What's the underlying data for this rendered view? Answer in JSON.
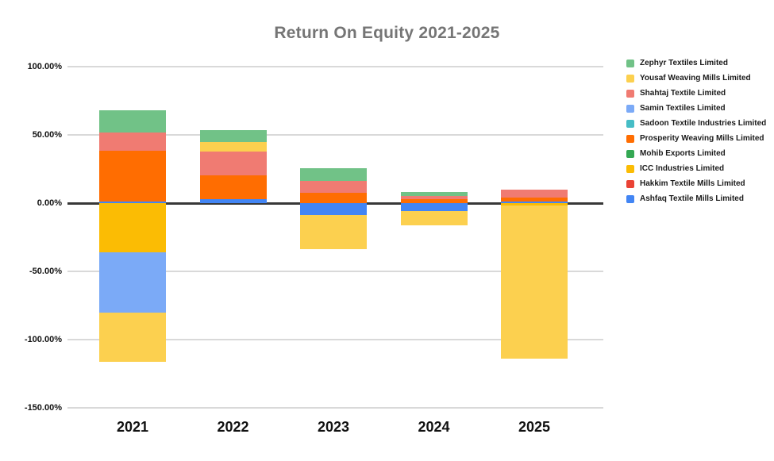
{
  "chart": {
    "title": "Return On Equity 2021-2025",
    "title_color": "#757575",
    "background_color": "#ffffff",
    "gridline_color": "#d9d9d9",
    "zero_line_color": "#383838"
  },
  "chart_data": {
    "type": "bar",
    "stacked": true,
    "title": "Return On Equity 2021-2025",
    "xlabel": "",
    "ylabel": "",
    "value_format": "percent",
    "grid": true,
    "legend_position": "right",
    "stack_order": "reverse of series array (last series nearest zero)",
    "categories": [
      "2021",
      "2022",
      "2023",
      "2024",
      "2025"
    ],
    "y_axis": {
      "range": [
        -150,
        100
      ],
      "ticks": [
        {
          "label": "100.00%",
          "value": 100
        },
        {
          "label": "50.00%",
          "value": 50
        },
        {
          "label": "0.00%",
          "value": 0
        },
        {
          "label": "-50.00%",
          "value": -50
        },
        {
          "label": "-100.00%",
          "value": -100
        },
        {
          "label": "-150.00%",
          "value": -150
        }
      ]
    },
    "series": [
      {
        "name": "Zephyr Textiles Limited",
        "color": "#71C287",
        "values": [
          16.3,
          8.7,
          9.3,
          2.9,
          0
        ]
      },
      {
        "name": "Yousaf Weaving Mills Limited",
        "color": "#FCD04F",
        "values": [
          -36,
          7,
          -25,
          -10.5,
          -112
        ]
      },
      {
        "name": "Shahtaj Textile Limited",
        "color": "#F07B72",
        "values": [
          13.4,
          17.4,
          8.7,
          2.3,
          5.8
        ]
      },
      {
        "name": "Samin Textiles Limited",
        "color": "#7BAAF7",
        "values": [
          -44,
          0,
          0,
          0,
          0
        ]
      },
      {
        "name": "Sadoon Textile Industries Limited",
        "color": "#46BDC6",
        "values": [
          0,
          0,
          0,
          0,
          0
        ]
      },
      {
        "name": "Prosperity Weaving Mills Limited",
        "color": "#FF6D01",
        "values": [
          37.2,
          17.4,
          7.6,
          3.1,
          2.9
        ]
      },
      {
        "name": "Mohib Exports Limited",
        "color": "#34A853",
        "values": [
          0,
          0,
          0,
          0,
          0
        ]
      },
      {
        "name": "ICC Industries Limited",
        "color": "#FBBC04",
        "values": [
          -36,
          0,
          0,
          0,
          -2
        ]
      },
      {
        "name": "Hakkim Textile Mills Limited",
        "color": "#EA4335",
        "values": [
          0,
          0,
          0,
          0,
          0
        ]
      },
      {
        "name": "Ashfaq Textile Mills Limited",
        "color": "#4285F4",
        "values": [
          1.2,
          2.9,
          -8.7,
          -5.7,
          1
        ]
      }
    ]
  }
}
